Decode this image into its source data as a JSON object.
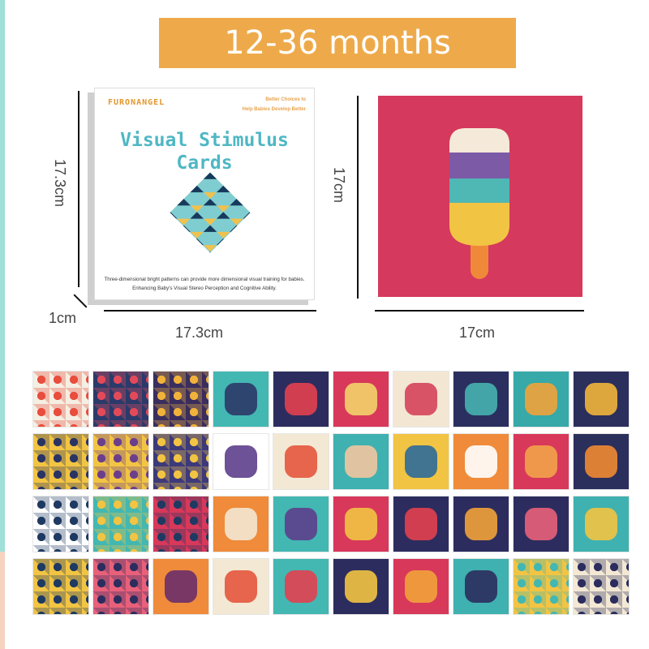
{
  "banner": {
    "label": "12-36 months"
  },
  "box": {
    "brand": "FURONANGEL",
    "slogan_line1": "Better Choices to",
    "slogan_line2": "Help Babies Develop Better",
    "title_line1": "Visual Stimulus",
    "title_line2": "Cards",
    "description": "Three-dimensional bright patterns can provide more dimensional visual training for babies. Enhancing Baby's Visual Stereo Perception and Cognitive Ability."
  },
  "dimensions": {
    "box_height": "17.3cm",
    "box_width": "17.3cm",
    "box_depth": "1cm",
    "card_height": "17cm",
    "card_width": "17cm"
  },
  "colors": {
    "banner": "#eeaa4a",
    "card_red": "#d5395d",
    "title": "#4fb7c4"
  },
  "cards": [
    {
      "bg": "#f4efe2",
      "fg": "#e84d3d",
      "pattern": true
    },
    {
      "bg": "#2b3a6a",
      "fg": "#e24a5a",
      "pattern": true
    },
    {
      "bg": "#3a2e5e",
      "fg": "#f0b23a",
      "pattern": true
    },
    {
      "bg": "#43b7b2",
      "fg": "#2c3968"
    },
    {
      "bg": "#2c2d5e",
      "fg": "#e2404f"
    },
    {
      "bg": "#d8385a",
      "fg": "#f3d36a"
    },
    {
      "bg": "#f3e6d3",
      "fg": "#d6425a"
    },
    {
      "bg": "#2a2f5f",
      "fg": "#46b3b0"
    },
    {
      "bg": "#36a9a8",
      "fg": "#f0a23a"
    },
    {
      "bg": "#2b2f5c",
      "fg": "#f2b53a"
    },
    {
      "bg": "#f2c443",
      "fg": "#2a3464",
      "pattern": true
    },
    {
      "bg": "#f2c443",
      "fg": "#6c3f8c",
      "pattern": true
    },
    {
      "bg": "#3d3a7a",
      "fg": "#f2c443",
      "pattern": true
    },
    {
      "bg": "#ffffff",
      "fg": "#5d3f8c"
    },
    {
      "bg": "#f3e8d3",
      "fg": "#e4573d"
    },
    {
      "bg": "#3fb1b0",
      "fg": "#f2c6a0"
    },
    {
      "bg": "#f2c443",
      "fg": "#2c6b9a"
    },
    {
      "bg": "#ef8b3a",
      "fg": "#ffffff"
    },
    {
      "bg": "#d8385a",
      "fg": "#f2a34a"
    },
    {
      "bg": "#2b2f5c",
      "fg": "#f08a32"
    },
    {
      "bg": "#ffffff",
      "fg": "#1f3a62",
      "pattern": true
    },
    {
      "bg": "#44b7b1",
      "fg": "#f2c443",
      "pattern": true
    },
    {
      "bg": "#d8385a",
      "fg": "#1f3a62",
      "pattern": true
    },
    {
      "bg": "#ef8b3a",
      "fg": "#f3e6d3"
    },
    {
      "bg": "#43b7b2",
      "fg": "#5d3f8c"
    },
    {
      "bg": "#d8385a",
      "fg": "#f2c443"
    },
    {
      "bg": "#2c2d5e",
      "fg": "#e2404f"
    },
    {
      "bg": "#2c2d5e",
      "fg": "#f2a23a"
    },
    {
      "bg": "#2c2d5e",
      "fg": "#e8607a"
    },
    {
      "bg": "#3fb1b0",
      "fg": "#f2c443"
    },
    {
      "bg": "#f2c443",
      "fg": "#1f3a62",
      "pattern": true
    },
    {
      "bg": "#e8607a",
      "fg": "#2c2d5e",
      "pattern": true
    },
    {
      "bg": "#ef8b3a",
      "fg": "#6a2e6a"
    },
    {
      "bg": "#f3e8d3",
      "fg": "#e4573d"
    },
    {
      "bg": "#43b7b2",
      "fg": "#e2404f"
    },
    {
      "bg": "#2c2d5e",
      "fg": "#f2c443"
    },
    {
      "bg": "#d8385a",
      "fg": "#f2a23a"
    },
    {
      "bg": "#3fb1b0",
      "fg": "#2c2d5e"
    },
    {
      "bg": "#f2c443",
      "fg": "#43b7b2",
      "pattern": true
    },
    {
      "bg": "#f3e8d3",
      "fg": "#2c2d5e",
      "pattern": true
    }
  ]
}
